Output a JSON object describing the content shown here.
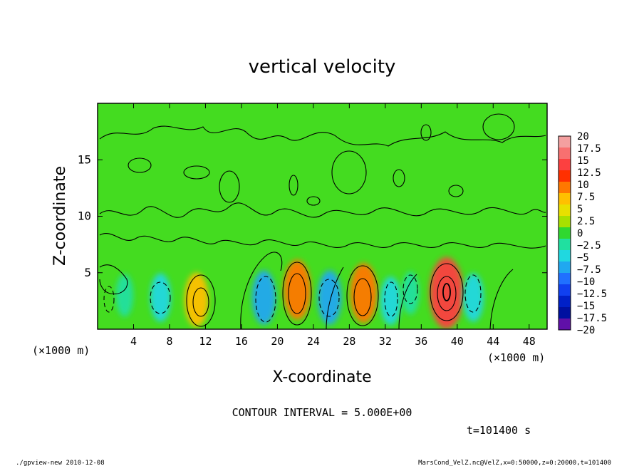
{
  "chart_data": {
    "type": "heatmap",
    "title": "vertical velocity",
    "xlabel": "X-coordinate",
    "ylabel": "Z-coordinate",
    "x_unit": "(×1000 m)",
    "y_unit": "(×1000 m)",
    "xlim": [
      0,
      50
    ],
    "ylim": [
      0,
      20
    ],
    "x_ticks": [
      4,
      8,
      12,
      16,
      20,
      24,
      28,
      32,
      36,
      40,
      44,
      48
    ],
    "y_ticks": [
      5,
      10,
      15
    ],
    "colorbar": {
      "min": -20,
      "max": 20,
      "labels": [
        "20",
        "17.5",
        "15",
        "12.5",
        "10",
        "7.5",
        "5",
        "2.5",
        "0",
        "−2.5",
        "−5",
        "−7.5",
        "−10",
        "−12.5",
        "−15",
        "−17.5",
        "−20"
      ],
      "colors": [
        "#f4a0a0",
        "#f87070",
        "#fc4040",
        "#ff3000",
        "#ff7800",
        "#ffc000",
        "#e8e000",
        "#a8e000",
        "#30d830",
        "#20e0a0",
        "#20d8e0",
        "#20a8f0",
        "#2070ff",
        "#1040f0",
        "#0020c8",
        "#0010a0",
        "#6010a8"
      ]
    },
    "contour_interval": "CONTOUR INTERVAL = 5.000E+00",
    "time_label": "t=101400 s",
    "cells": [
      {
        "x": 3,
        "z": 3,
        "value": -2.5
      },
      {
        "x": 7,
        "z": 2.8,
        "value": -5
      },
      {
        "x": 11,
        "z": 2.6,
        "value": 7.5
      },
      {
        "x": 18.5,
        "z": 2.8,
        "value": -7.5
      },
      {
        "x": 22.2,
        "z": 3.5,
        "value": 10
      },
      {
        "x": 25.8,
        "z": 2.8,
        "value": -7.5
      },
      {
        "x": 29.6,
        "z": 3.2,
        "value": 10
      },
      {
        "x": 32.6,
        "z": 2.5,
        "value": -5
      },
      {
        "x": 34.8,
        "z": 3.2,
        "value": -2.5
      },
      {
        "x": 38.8,
        "z": 3.2,
        "value": 15
      },
      {
        "x": 41.8,
        "z": 2.8,
        "value": -5
      }
    ]
  },
  "footer": {
    "left": "./gpview-new  2010-12-08",
    "right": "MarsCond_VelZ.nc@VelZ,x=0:50000,z=0:20000,t=101400"
  }
}
